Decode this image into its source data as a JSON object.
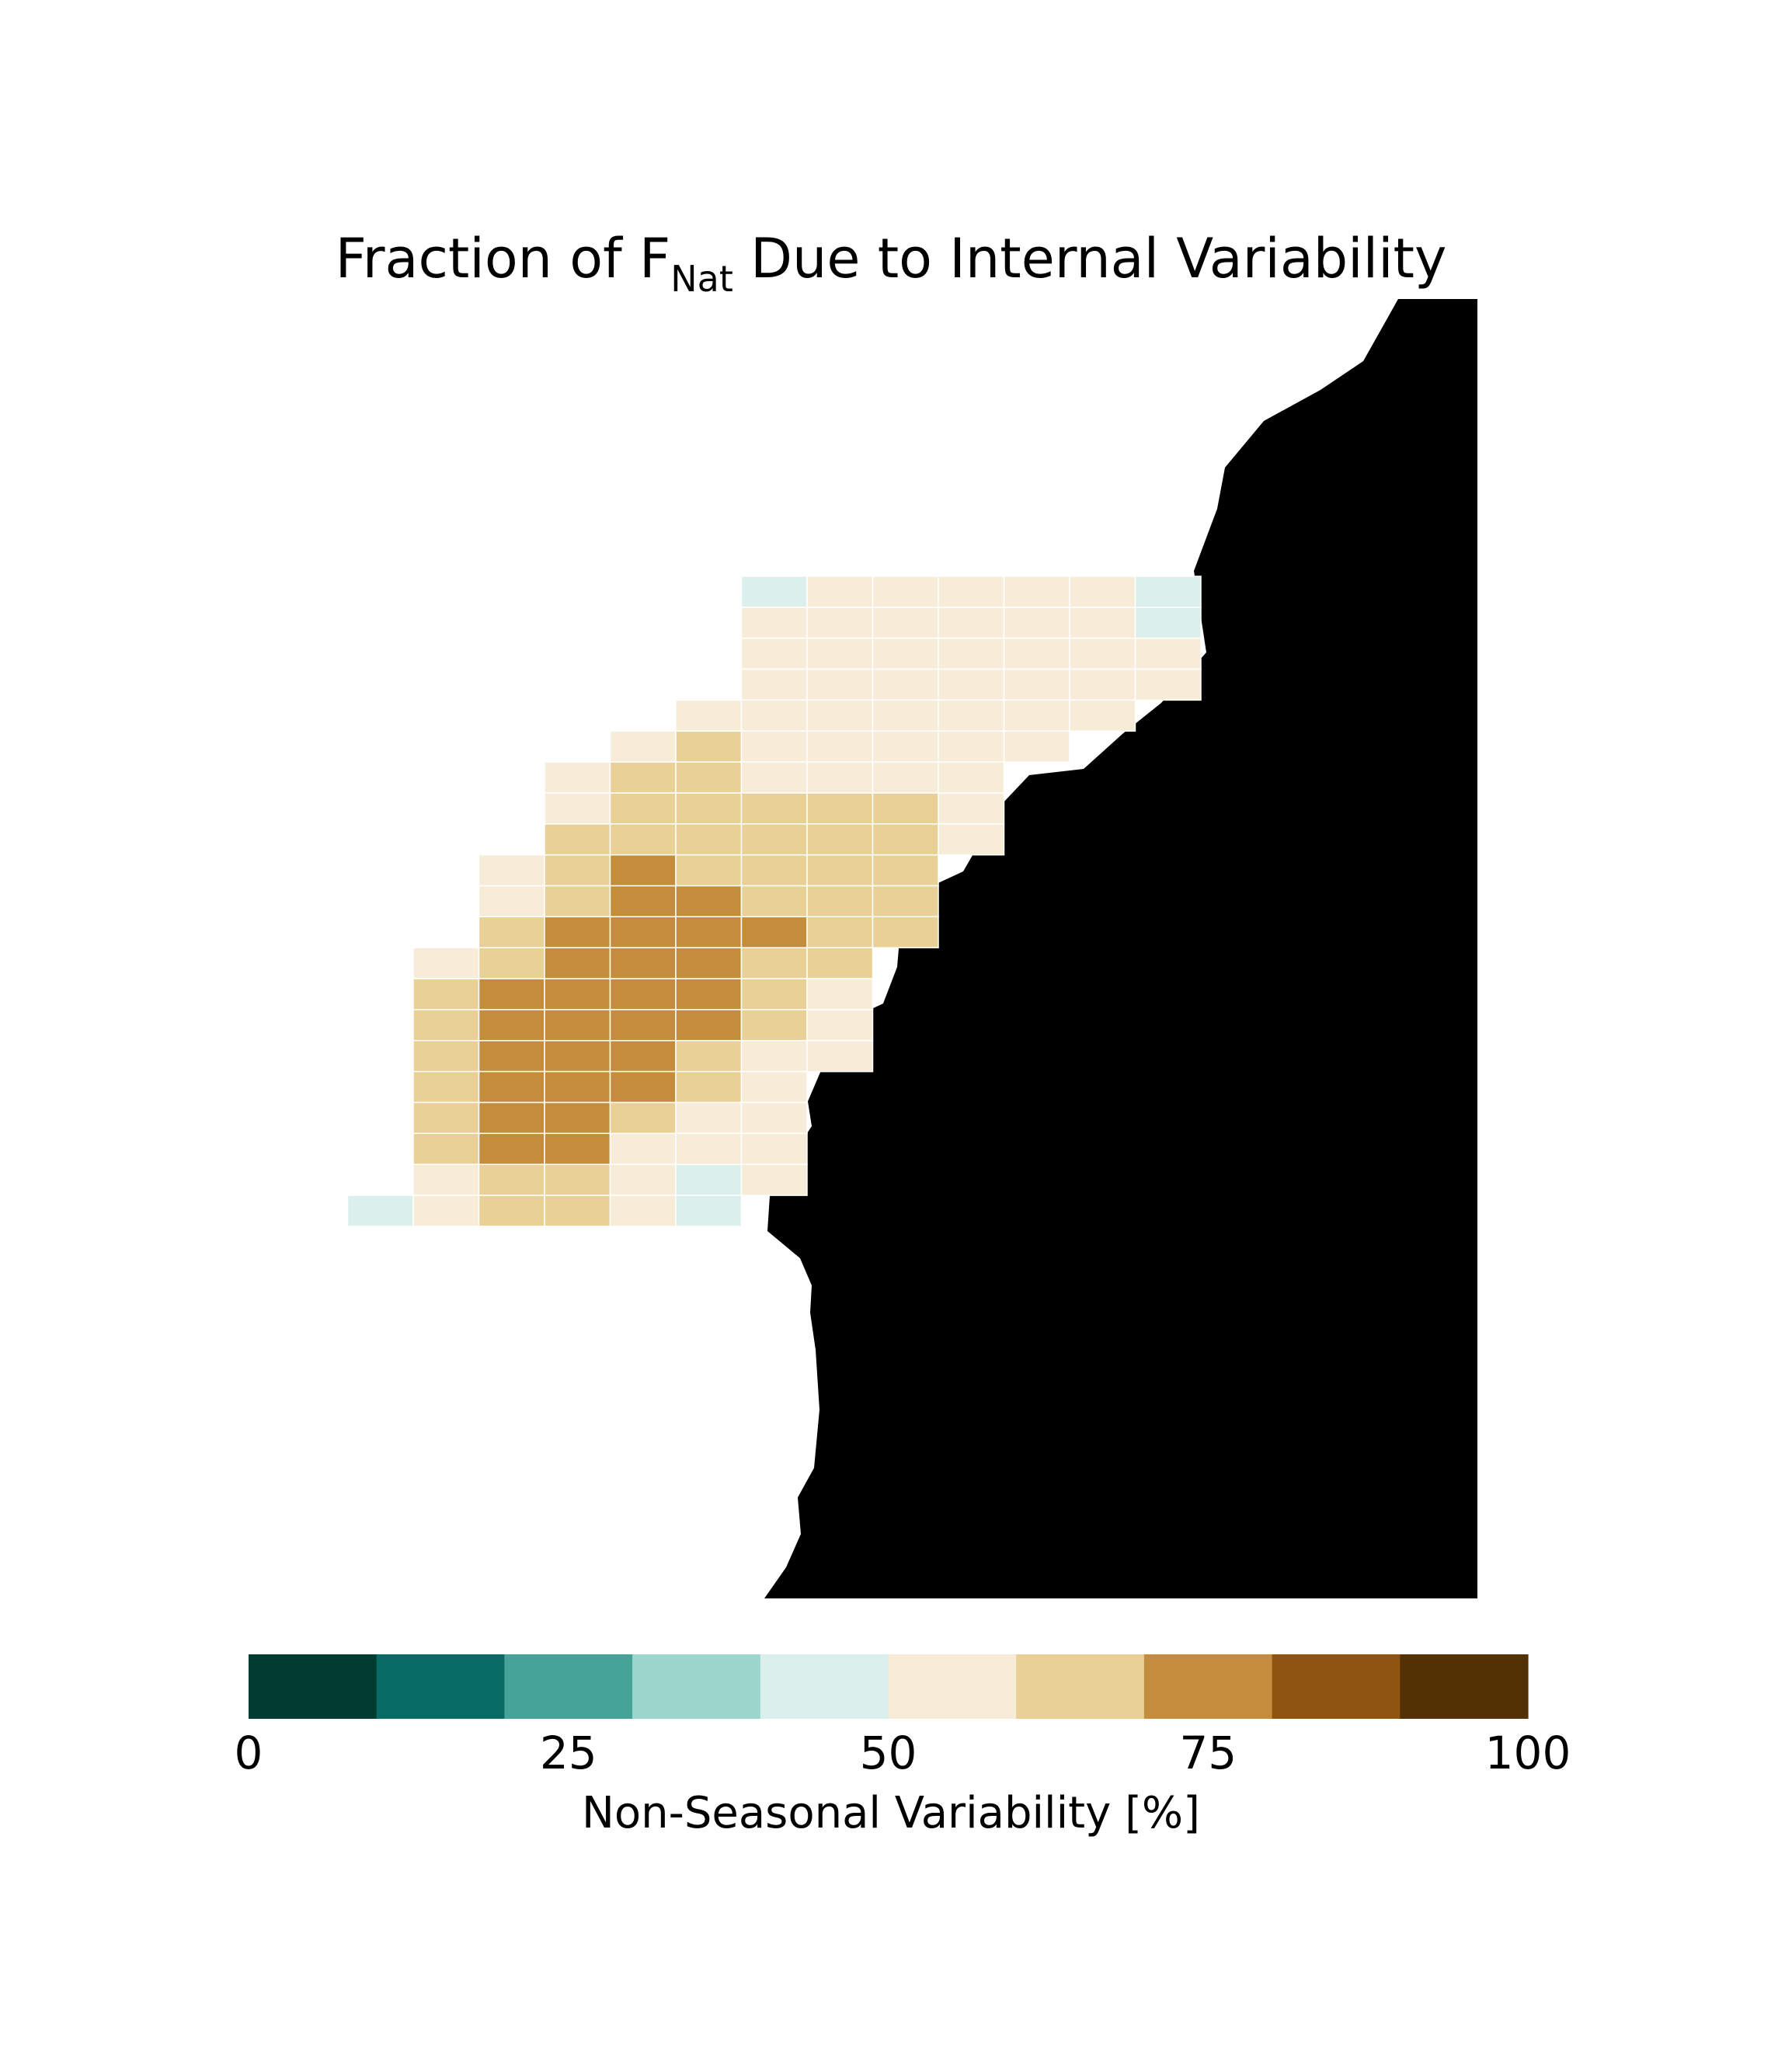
{
  "title": {
    "prefix": "Fraction of F",
    "subscript": "Nat",
    "suffix": " Due to Internal Variability"
  },
  "colors": {
    "land": "#d3d3d3",
    "grid_line": "#ffffff",
    "bins": [
      "#003c30",
      "#086c64",
      "#46a398",
      "#9bd7cd",
      "#dbefec",
      "#f6ecd8",
      "#e8d096",
      "#c48d3d",
      "#8f5510",
      "#543005"
    ]
  },
  "colorbar": {
    "label": "Non-Seasonal Variability [%]",
    "min": 0,
    "max": 100,
    "bin_width": 10,
    "ticks": [
      0,
      25,
      50,
      75,
      100
    ]
  },
  "chart_data": {
    "type": "heatmap",
    "value_units": "%",
    "note_bins": "each cell value is the colour-bin centre",
    "rows": [
      [
        null,
        null,
        null,
        null,
        null,
        45,
        55,
        55,
        55,
        55,
        55,
        45
      ],
      [
        null,
        null,
        null,
        null,
        null,
        55,
        55,
        55,
        55,
        55,
        55,
        45
      ],
      [
        null,
        null,
        null,
        null,
        null,
        55,
        55,
        55,
        55,
        55,
        55,
        55
      ],
      [
        null,
        null,
        null,
        null,
        null,
        55,
        55,
        55,
        55,
        55,
        55,
        55
      ],
      [
        null,
        null,
        null,
        null,
        55,
        55,
        55,
        55,
        55,
        55,
        55,
        null
      ],
      [
        null,
        null,
        null,
        55,
        65,
        55,
        55,
        55,
        55,
        55,
        null,
        null
      ],
      [
        null,
        null,
        55,
        65,
        65,
        55,
        55,
        55,
        55,
        null,
        null,
        null
      ],
      [
        null,
        null,
        55,
        65,
        65,
        65,
        65,
        65,
        55,
        null,
        null,
        null
      ],
      [
        null,
        null,
        65,
        65,
        65,
        65,
        65,
        65,
        55,
        null,
        null,
        null
      ],
      [
        null,
        55,
        65,
        75,
        65,
        65,
        65,
        65,
        null,
        null,
        null,
        null
      ],
      [
        null,
        55,
        65,
        75,
        75,
        65,
        65,
        65,
        null,
        null,
        null,
        null
      ],
      [
        null,
        65,
        75,
        75,
        75,
        75,
        65,
        65,
        null,
        null,
        null,
        null
      ],
      [
        55,
        65,
        75,
        75,
        75,
        65,
        65,
        null,
        null,
        null,
        null,
        null
      ],
      [
        65,
        75,
        75,
        75,
        75,
        65,
        55,
        null,
        null,
        null,
        null,
        null
      ],
      [
        65,
        75,
        75,
        75,
        75,
        65,
        55,
        null,
        null,
        null,
        null,
        null
      ],
      [
        65,
        75,
        75,
        75,
        65,
        55,
        55,
        null,
        null,
        null,
        null,
        null
      ],
      [
        65,
        75,
        75,
        75,
        65,
        55,
        null,
        null,
        null,
        null,
        null,
        null
      ],
      [
        65,
        75,
        75,
        65,
        55,
        55,
        null,
        null,
        null,
        null,
        null,
        null
      ],
      [
        65,
        75,
        75,
        55,
        55,
        55,
        null,
        null,
        null,
        null,
        null,
        null
      ],
      [
        55,
        65,
        65,
        55,
        45,
        55,
        null,
        null,
        null,
        null,
        null,
        null
      ],
      [
        55,
        65,
        65,
        55,
        45,
        null,
        null,
        null,
        null,
        null,
        null,
        null
      ]
    ],
    "extra_cells": [
      {
        "row": 20,
        "col": -1,
        "value": 45
      }
    ]
  }
}
